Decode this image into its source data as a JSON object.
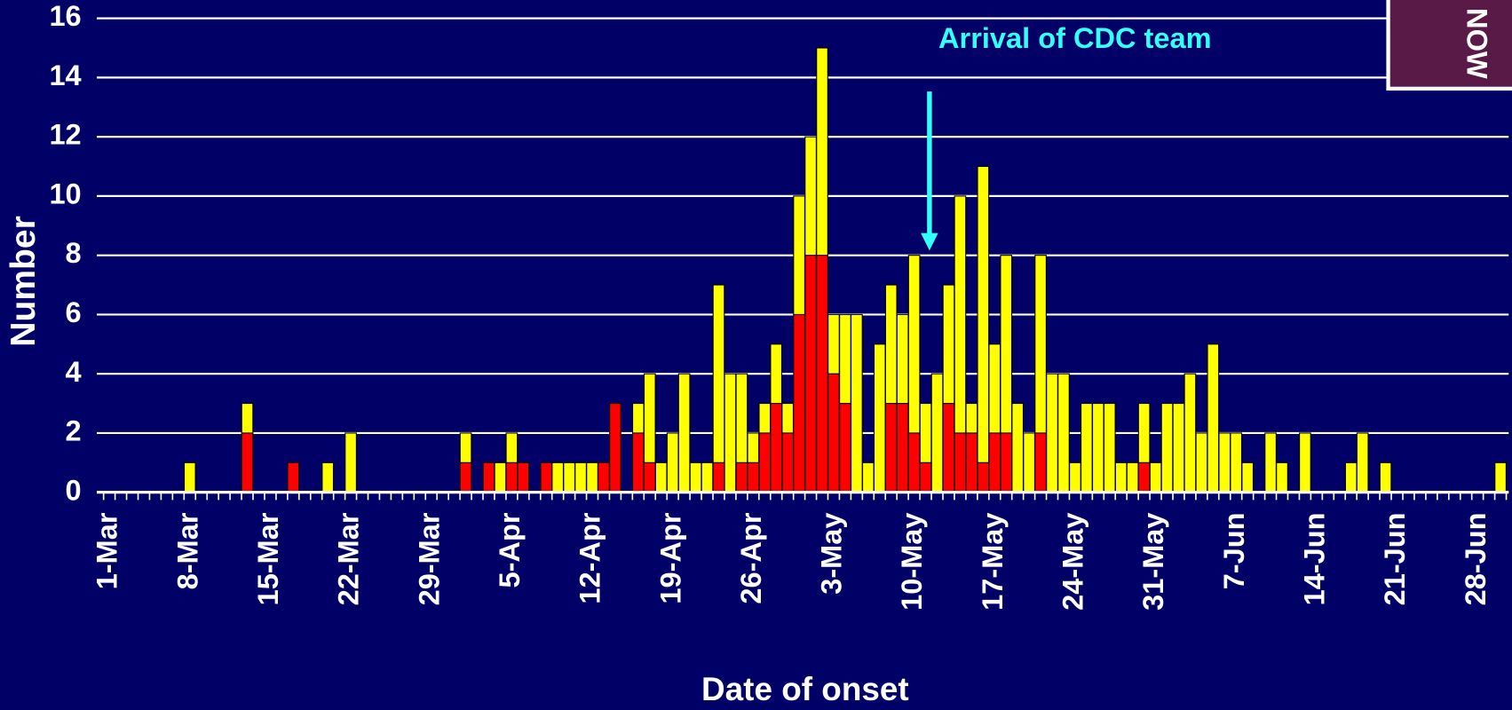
{
  "chart_data": {
    "type": "stacked_bar",
    "annotation": "Arrival of CDC team",
    "badge": "NOW",
    "xlabel": "Date of onset",
    "ylabel": "Number",
    "ylim": [
      0,
      16
    ],
    "yticks": [
      0,
      2,
      4,
      6,
      8,
      10,
      12,
      14,
      16
    ],
    "grid": true,
    "categories": [
      "1-Mar",
      null,
      null,
      null,
      null,
      null,
      null,
      "8-Mar",
      null,
      null,
      null,
      null,
      null,
      null,
      "15-Mar",
      null,
      null,
      null,
      null,
      null,
      null,
      "22-Mar",
      null,
      null,
      null,
      null,
      null,
      null,
      "29-Mar",
      null,
      null,
      null,
      null,
      null,
      null,
      "5-Apr",
      null,
      null,
      null,
      null,
      null,
      null,
      "12-Apr",
      null,
      null,
      null,
      null,
      null,
      null,
      "19-Apr",
      null,
      null,
      null,
      null,
      null,
      null,
      "26-Apr",
      null,
      null,
      null,
      null,
      null,
      null,
      "3-May",
      null,
      null,
      null,
      null,
      null,
      null,
      "10-May",
      null,
      null,
      null,
      null,
      null,
      null,
      "17-May",
      null,
      null,
      null,
      null,
      null,
      null,
      "24-May",
      null,
      null,
      null,
      null,
      null,
      null,
      "31-May",
      null,
      null,
      null,
      null,
      null,
      null,
      "7-Jun",
      null,
      null,
      null,
      null,
      null,
      null,
      "14-Jun",
      null,
      null,
      null,
      null,
      null,
      null,
      "21-Jun",
      null,
      null,
      null,
      null,
      null,
      null,
      "28-Jun",
      null,
      null
    ],
    "series": [
      {
        "color": "#ff0000",
        "values": [
          0,
          0,
          0,
          0,
          0,
          0,
          0,
          0,
          0,
          0,
          0,
          0,
          2,
          0,
          0,
          0,
          1,
          0,
          0,
          0,
          0,
          0,
          0,
          0,
          0,
          0,
          0,
          0,
          0,
          0,
          0,
          1,
          0,
          1,
          0,
          1,
          1,
          0,
          1,
          0,
          0,
          0,
          0,
          1,
          3,
          0,
          2,
          1,
          0,
          0,
          0,
          0,
          0,
          1,
          0,
          1,
          1,
          2,
          3,
          2,
          6,
          8,
          8,
          4,
          3,
          0,
          0,
          0,
          3,
          3,
          2,
          1,
          0,
          3,
          2,
          2,
          1,
          2,
          2,
          0,
          0,
          2,
          0,
          0,
          0,
          0,
          0,
          0,
          0,
          0,
          1,
          0,
          0,
          0,
          0,
          0,
          0,
          0,
          0,
          0,
          0,
          0,
          0,
          0,
          0,
          0,
          0,
          0,
          0,
          0,
          0,
          0,
          0,
          0,
          0,
          0,
          0,
          0,
          0,
          0,
          0,
          0
        ]
      },
      {
        "color": "#ffff00",
        "values": [
          0,
          0,
          0,
          0,
          0,
          0,
          0,
          1,
          0,
          0,
          0,
          0,
          1,
          0,
          0,
          0,
          0,
          0,
          0,
          1,
          0,
          2,
          0,
          0,
          0,
          0,
          0,
          0,
          0,
          0,
          0,
          1,
          0,
          0,
          1,
          1,
          0,
          0,
          0,
          1,
          1,
          1,
          1,
          0,
          0,
          0,
          1,
          3,
          1,
          2,
          4,
          1,
          1,
          6,
          4,
          3,
          1,
          1,
          2,
          1,
          4,
          4,
          7,
          2,
          3,
          6,
          1,
          5,
          4,
          3,
          6,
          2,
          4,
          4,
          8,
          1,
          10,
          3,
          6,
          3,
          2,
          6,
          4,
          4,
          1,
          3,
          3,
          3,
          1,
          1,
          2,
          1,
          3,
          3,
          4,
          2,
          5,
          2,
          2,
          1,
          0,
          2,
          1,
          0,
          2,
          0,
          0,
          0,
          1,
          2,
          0,
          1,
          0,
          0,
          0,
          0,
          0,
          0,
          0,
          0,
          0,
          1
        ]
      }
    ]
  }
}
